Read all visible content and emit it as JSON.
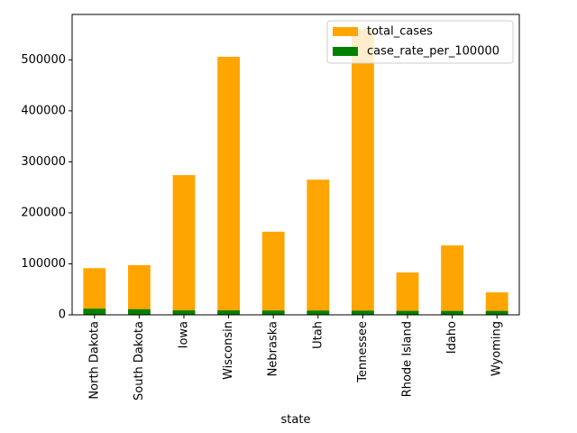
{
  "chart_data": {
    "type": "bar",
    "stacked": true,
    "xlabel": "state",
    "ylabel": "",
    "ylim": [
      0,
      589000
    ],
    "yticks": [
      0,
      100000,
      200000,
      300000,
      400000,
      500000
    ],
    "categories": [
      "North Dakota",
      "South Dakota",
      "Iowa",
      "Wisconsin",
      "Nebraska",
      "Utah",
      "Tennessee",
      "Rhode Island",
      "Idaho",
      "Wyoming"
    ],
    "series": [
      {
        "name": "total_cases",
        "color": "#ffa500",
        "values": [
          91500,
          97500,
          274000,
          506000,
          163000,
          265000,
          560000,
          83000,
          136000,
          44000
        ]
      },
      {
        "name": "case_rate_per_100000",
        "color": "#008000",
        "values": [
          12000,
          11000,
          8700,
          8700,
          8400,
          8300,
          8200,
          7800,
          7600,
          7600
        ]
      }
    ],
    "legend": {
      "position": "top-right"
    },
    "grid": false
  }
}
